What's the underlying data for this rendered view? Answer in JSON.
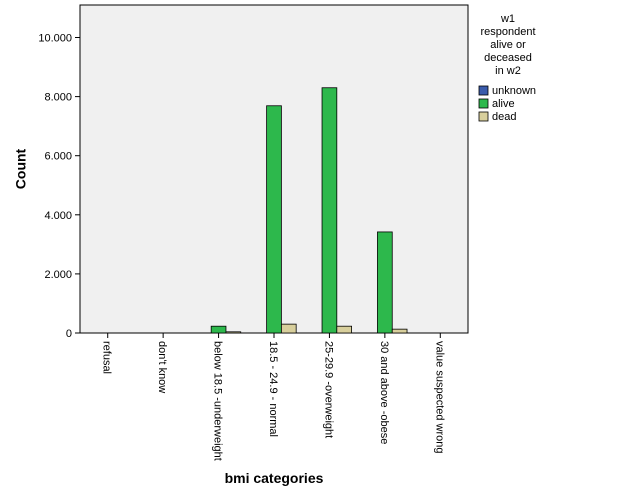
{
  "chart_data": {
    "type": "bar",
    "x_label": "bmi categories",
    "y_label": "Count",
    "legend_title": [
      "w1",
      "respondent",
      "alive or",
      "deceased",
      "in w2"
    ],
    "categories": [
      "refusal",
      "don't know",
      "below 18.5 -underweight",
      "18.5 - 24.9 - normal",
      "25-29.9 -overweight",
      "30 and above -obese",
      "value suspected wrong"
    ],
    "series": [
      {
        "name": "unknown",
        "color": "#3a5bab",
        "values": [
          0,
          0,
          0,
          0,
          0,
          0,
          0
        ]
      },
      {
        "name": "alive",
        "color": "#2db84c",
        "values": [
          0,
          0,
          230,
          7690,
          8300,
          3420,
          0
        ]
      },
      {
        "name": "dead",
        "color": "#d8cf9c",
        "values": [
          0,
          0,
          40,
          300,
          230,
          130,
          0
        ]
      }
    ],
    "ylim": [
      0,
      11100
    ],
    "yticks": [
      0,
      {
        "value": 2000,
        "label": "2.000"
      },
      {
        "value": 4000,
        "label": "4.000"
      },
      {
        "value": 6000,
        "label": "6.000"
      },
      {
        "value": 8000,
        "label": "8.000"
      },
      {
        "value": 10000,
        "label": "10.000"
      }
    ],
    "grid": false
  }
}
